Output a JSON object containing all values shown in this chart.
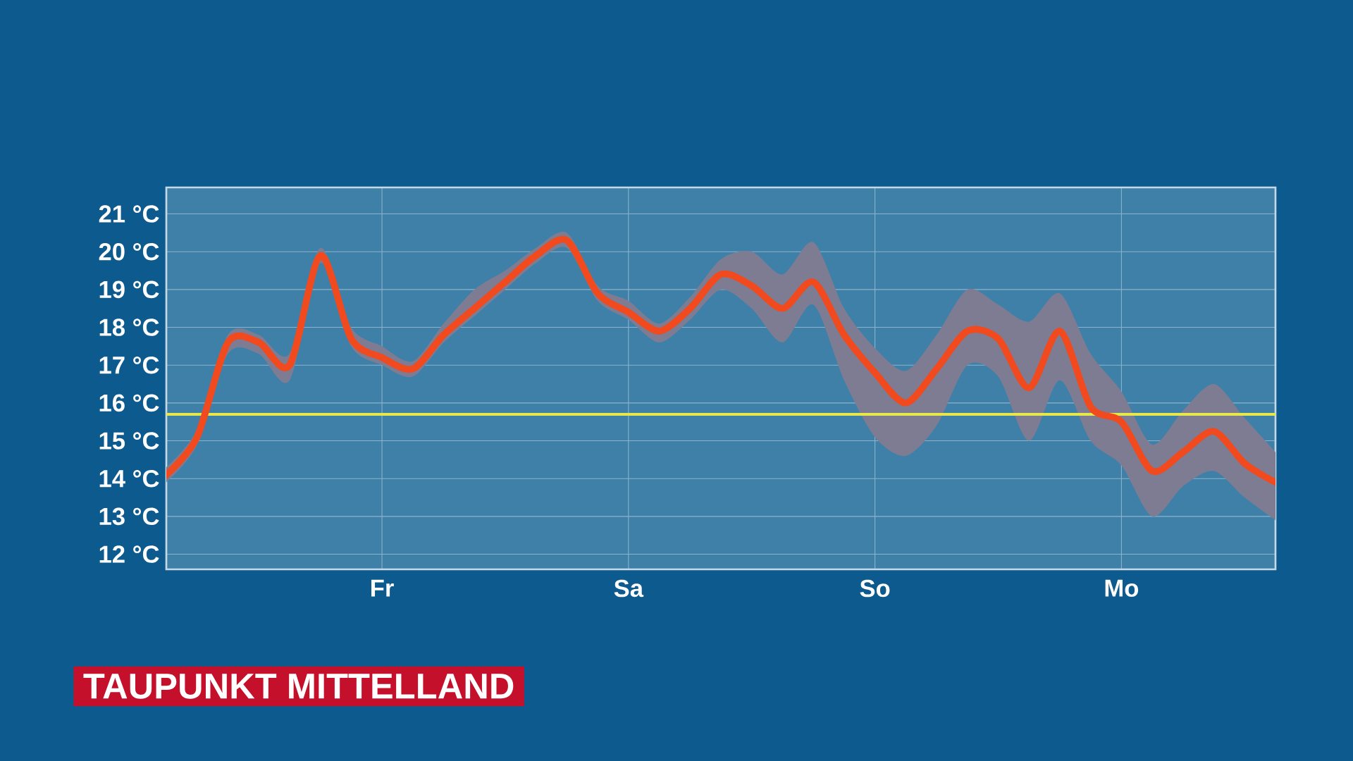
{
  "chart_data": {
    "type": "line",
    "title": "TAUPUNKT MITTELLAND",
    "categories": [
      null,
      null,
      null,
      null,
      null,
      null,
      null,
      "Fr",
      null,
      null,
      null,
      null,
      null,
      null,
      null,
      "Sa",
      null,
      null,
      null,
      null,
      null,
      null,
      null,
      "So",
      null,
      null,
      null,
      null,
      null,
      null,
      null,
      "Mo",
      null,
      null,
      null,
      null,
      null
    ],
    "series": [
      {
        "color": "#f04a1e",
        "values": [
          14.1,
          15.1,
          17.6,
          17.6,
          17.0,
          19.9,
          17.7,
          17.2,
          16.9,
          17.8,
          18.5,
          19.2,
          19.9,
          20.3,
          18.9,
          18.4,
          17.9,
          18.5,
          19.4,
          19.1,
          18.5,
          19.2,
          17.8,
          16.8,
          16.0,
          16.9,
          17.9,
          17.7,
          16.4,
          17.9,
          15.9,
          15.5,
          14.2,
          14.7,
          15.25,
          14.4,
          13.9
        ],
        "lower": [
          13.9,
          14.9,
          17.3,
          17.3,
          16.6,
          19.7,
          17.5,
          17.0,
          16.7,
          17.6,
          18.3,
          19.0,
          19.7,
          20.1,
          18.7,
          18.2,
          17.6,
          18.2,
          19.0,
          18.5,
          17.6,
          18.6,
          16.6,
          15.1,
          14.6,
          15.4,
          17.0,
          16.7,
          15.0,
          16.6,
          15.0,
          14.35,
          13.0,
          13.8,
          14.2,
          13.5,
          12.9
        ],
        "upper": [
          14.3,
          15.3,
          17.8,
          17.8,
          17.3,
          20.1,
          18.0,
          17.5,
          17.1,
          18.1,
          19.0,
          19.5,
          20.1,
          20.5,
          19.1,
          18.7,
          18.1,
          18.8,
          19.8,
          20.0,
          19.4,
          20.25,
          18.5,
          17.45,
          16.85,
          17.8,
          19.0,
          18.6,
          18.15,
          18.9,
          17.3,
          16.3,
          14.9,
          15.8,
          16.5,
          15.6,
          14.7
        ]
      }
    ],
    "ylim": [
      11.6,
      21.7
    ],
    "yticks": [
      {
        "value": 12,
        "label": "12 °C"
      },
      {
        "value": 13,
        "label": "13 °C"
      },
      {
        "value": 14,
        "label": "14 °C"
      },
      {
        "value": 15,
        "label": "15 °C"
      },
      {
        "value": 16,
        "label": "16 °C"
      },
      {
        "value": 17,
        "label": "17 °C"
      },
      {
        "value": 18,
        "label": "18 °C"
      },
      {
        "value": 19,
        "label": "19 °C"
      },
      {
        "value": 20,
        "label": "20 °C"
      },
      {
        "value": 21,
        "label": "21 °C"
      }
    ],
    "ref_lines": [
      {
        "axis": "y",
        "value": 15.7,
        "color": "#e6e84a"
      }
    ],
    "grid": true
  }
}
